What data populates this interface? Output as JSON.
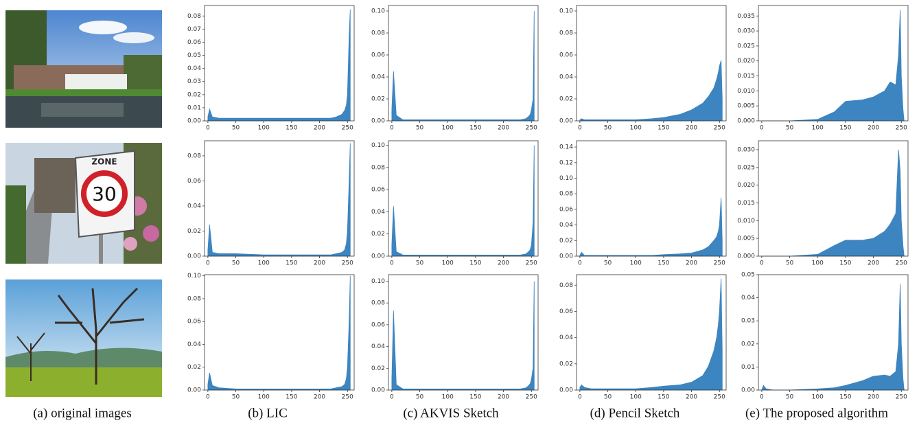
{
  "captions": [
    "(a) original images",
    "(b) LIC",
    "(c) AKVIS Sketch",
    "(d) Pencil Sketch",
    "(e) The proposed algorithm"
  ],
  "photo_text": [
    "ZONE",
    "30"
  ],
  "chart_data": [
    {
      "type": "area",
      "color": "#3d85c0",
      "xlim": [
        -6,
        262
      ],
      "xticks": [
        0,
        50,
        100,
        150,
        200,
        250
      ],
      "ylim": [
        0,
        0.088
      ],
      "yticks": [
        {
          "value": 0,
          "label": "0.00"
        },
        {
          "value": 0.01,
          "label": "0.01"
        },
        {
          "value": 0.02,
          "label": "0.02"
        },
        {
          "value": 0.03,
          "label": "0.03"
        },
        {
          "value": 0.04,
          "label": "0.04"
        },
        {
          "value": 0.05,
          "label": "0.05"
        },
        {
          "value": 0.06,
          "label": "0.06"
        },
        {
          "value": 0.07,
          "label": "0.07"
        },
        {
          "value": 0.08,
          "label": "0.08"
        }
      ],
      "x": [
        0,
        3,
        8,
        20,
        50,
        100,
        130,
        150,
        180,
        200,
        220,
        230,
        240,
        245,
        248,
        250,
        253,
        255
      ],
      "values": [
        0.003,
        0.009,
        0.003,
        0.002,
        0.002,
        0.002,
        0.002,
        0.002,
        0.002,
        0.002,
        0.002,
        0.003,
        0.005,
        0.008,
        0.012,
        0.02,
        0.065,
        0.085
      ]
    },
    {
      "type": "area",
      "color": "#3d85c0",
      "xlim": [
        -6,
        262
      ],
      "xticks": [
        0,
        50,
        100,
        150,
        200,
        250
      ],
      "ylim": [
        0,
        0.105
      ],
      "yticks": [
        {
          "value": 0,
          "label": "0.00"
        },
        {
          "value": 0.02,
          "label": "0.02"
        },
        {
          "value": 0.04,
          "label": "0.04"
        },
        {
          "value": 0.06,
          "label": "0.06"
        },
        {
          "value": 0.08,
          "label": "0.08"
        },
        {
          "value": 0.1,
          "label": "0.10"
        }
      ],
      "x": [
        0,
        3,
        8,
        20,
        50,
        100,
        130,
        150,
        180,
        200,
        220,
        230,
        240,
        245,
        248,
        250,
        253,
        255
      ],
      "values": [
        0.01,
        0.045,
        0.005,
        0.001,
        0.001,
        0.001,
        0.001,
        0.001,
        0.001,
        0.001,
        0.001,
        0.001,
        0.002,
        0.004,
        0.006,
        0.01,
        0.02,
        0.1
      ]
    },
    {
      "type": "area",
      "color": "#3d85c0",
      "xlim": [
        -6,
        262
      ],
      "xticks": [
        0,
        50,
        100,
        150,
        200,
        250
      ],
      "ylim": [
        0,
        0.105
      ],
      "yticks": [
        {
          "value": 0,
          "label": "0.00"
        },
        {
          "value": 0.02,
          "label": "0.02"
        },
        {
          "value": 0.04,
          "label": "0.04"
        },
        {
          "value": 0.06,
          "label": "0.06"
        },
        {
          "value": 0.08,
          "label": "0.08"
        },
        {
          "value": 0.1,
          "label": "0.10"
        }
      ],
      "x": [
        0,
        3,
        8,
        20,
        50,
        100,
        130,
        150,
        180,
        200,
        220,
        230,
        240,
        245,
        248,
        250,
        253,
        255
      ],
      "values": [
        0.001,
        0.002,
        0.001,
        0.001,
        0.001,
        0.001,
        0.002,
        0.003,
        0.006,
        0.01,
        0.016,
        0.022,
        0.03,
        0.038,
        0.044,
        0.05,
        0.055,
        0.02
      ]
    },
    {
      "type": "area",
      "color": "#3d85c0",
      "xlim": [
        -6,
        262
      ],
      "xticks": [
        0,
        50,
        100,
        150,
        200,
        250
      ],
      "ylim": [
        0,
        0.0385
      ],
      "yticks": [
        {
          "value": 0,
          "label": "0.000"
        },
        {
          "value": 0.005,
          "label": "0.005"
        },
        {
          "value": 0.01,
          "label": "0.010"
        },
        {
          "value": 0.015,
          "label": "0.015"
        },
        {
          "value": 0.02,
          "label": "0.020"
        },
        {
          "value": 0.025,
          "label": "0.025"
        },
        {
          "value": 0.03,
          "label": "0.030"
        },
        {
          "value": 0.035,
          "label": "0.035"
        }
      ],
      "x": [
        0,
        3,
        8,
        20,
        50,
        100,
        130,
        150,
        180,
        200,
        220,
        230,
        240,
        245,
        248,
        250,
        253,
        255
      ],
      "values": [
        0,
        0,
        0,
        0,
        0,
        0.0005,
        0.003,
        0.0065,
        0.007,
        0.008,
        0.01,
        0.013,
        0.012,
        0.022,
        0.037,
        0.015,
        0.004,
        0
      ]
    },
    {
      "type": "area",
      "color": "#3d85c0",
      "xlim": [
        -6,
        262
      ],
      "xticks": [
        0,
        50,
        100,
        150,
        200,
        250
      ],
      "ylim": [
        0,
        0.092
      ],
      "yticks": [
        {
          "value": 0,
          "label": "0.00"
        },
        {
          "value": 0.02,
          "label": "0.02"
        },
        {
          "value": 0.04,
          "label": "0.04"
        },
        {
          "value": 0.06,
          "label": "0.06"
        },
        {
          "value": 0.08,
          "label": "0.08"
        }
      ],
      "x": [
        0,
        3,
        8,
        20,
        50,
        100,
        130,
        150,
        180,
        200,
        220,
        230,
        240,
        245,
        248,
        250,
        253,
        255
      ],
      "values": [
        0.005,
        0.025,
        0.003,
        0.002,
        0.002,
        0.001,
        0.001,
        0.001,
        0.001,
        0.001,
        0.001,
        0.002,
        0.003,
        0.005,
        0.01,
        0.02,
        0.06,
        0.09
      ]
    },
    {
      "type": "area",
      "color": "#3d85c0",
      "xlim": [
        -6,
        262
      ],
      "xticks": [
        0,
        50,
        100,
        150,
        200,
        250
      ],
      "ylim": [
        0,
        0.104
      ],
      "yticks": [
        {
          "value": 0,
          "label": "0.00"
        },
        {
          "value": 0.02,
          "label": "0.02"
        },
        {
          "value": 0.04,
          "label": "0.04"
        },
        {
          "value": 0.06,
          "label": "0.06"
        },
        {
          "value": 0.08,
          "label": "0.08"
        },
        {
          "value": 0.1,
          "label": "0.10"
        }
      ],
      "x": [
        0,
        3,
        8,
        20,
        50,
        100,
        130,
        150,
        180,
        200,
        220,
        230,
        240,
        245,
        248,
        250,
        253,
        255
      ],
      "values": [
        0.01,
        0.045,
        0.004,
        0.001,
        0.001,
        0.001,
        0.001,
        0.001,
        0.001,
        0.001,
        0.001,
        0.001,
        0.002,
        0.004,
        0.006,
        0.01,
        0.03,
        0.1
      ]
    },
    {
      "type": "area",
      "color": "#3d85c0",
      "xlim": [
        -6,
        262
      ],
      "xticks": [
        0,
        50,
        100,
        150,
        200,
        250
      ],
      "ylim": [
        0,
        0.148
      ],
      "yticks": [
        {
          "value": 0,
          "label": "0.00"
        },
        {
          "value": 0.02,
          "label": "0.02"
        },
        {
          "value": 0.04,
          "label": "0.04"
        },
        {
          "value": 0.06,
          "label": "0.06"
        },
        {
          "value": 0.08,
          "label": "0.08"
        },
        {
          "value": 0.1,
          "label": "0.10"
        },
        {
          "value": 0.12,
          "label": "0.12"
        },
        {
          "value": 0.14,
          "label": "0.14"
        }
      ],
      "x": [
        0,
        3,
        8,
        20,
        50,
        100,
        130,
        150,
        180,
        200,
        220,
        230,
        240,
        245,
        248,
        250,
        253,
        255
      ],
      "values": [
        0.001,
        0.005,
        0.001,
        0.001,
        0.001,
        0.001,
        0.001,
        0.002,
        0.003,
        0.004,
        0.008,
        0.012,
        0.02,
        0.025,
        0.032,
        0.04,
        0.075,
        0.02
      ]
    },
    {
      "type": "area",
      "color": "#3d85c0",
      "xlim": [
        -6,
        262
      ],
      "xticks": [
        0,
        50,
        100,
        150,
        200,
        250
      ],
      "ylim": [
        0,
        0.0325
      ],
      "yticks": [
        {
          "value": 0,
          "label": "0.000"
        },
        {
          "value": 0.005,
          "label": "0.005"
        },
        {
          "value": 0.01,
          "label": "0.010"
        },
        {
          "value": 0.015,
          "label": "0.015"
        },
        {
          "value": 0.02,
          "label": "0.020"
        },
        {
          "value": 0.025,
          "label": "0.025"
        },
        {
          "value": 0.03,
          "label": "0.030"
        }
      ],
      "x": [
        0,
        3,
        8,
        20,
        50,
        100,
        130,
        150,
        180,
        200,
        220,
        230,
        240,
        245,
        248,
        250,
        253,
        255
      ],
      "values": [
        0,
        0,
        0,
        0,
        0,
        0.0005,
        0.003,
        0.0045,
        0.0045,
        0.005,
        0.007,
        0.009,
        0.012,
        0.03,
        0.024,
        0.01,
        0.003,
        0
      ]
    },
    {
      "type": "area",
      "color": "#3d85c0",
      "xlim": [
        -6,
        262
      ],
      "xticks": [
        0,
        50,
        100,
        150,
        200,
        250
      ],
      "ylim": [
        0,
        0.101
      ],
      "yticks": [
        {
          "value": 0,
          "label": "0.00"
        },
        {
          "value": 0.02,
          "label": "0.02"
        },
        {
          "value": 0.04,
          "label": "0.04"
        },
        {
          "value": 0.06,
          "label": "0.06"
        },
        {
          "value": 0.08,
          "label": "0.08"
        },
        {
          "value": 0.1,
          "label": "0.10"
        }
      ],
      "x": [
        0,
        3,
        8,
        20,
        50,
        100,
        130,
        150,
        180,
        200,
        220,
        230,
        240,
        245,
        248,
        250,
        253,
        255
      ],
      "values": [
        0.005,
        0.015,
        0.004,
        0.002,
        0.001,
        0.001,
        0.001,
        0.001,
        0.001,
        0.001,
        0.001,
        0.002,
        0.003,
        0.005,
        0.01,
        0.02,
        0.06,
        0.1
      ]
    },
    {
      "type": "area",
      "color": "#3d85c0",
      "xlim": [
        -6,
        262
      ],
      "xticks": [
        0,
        50,
        100,
        150,
        200,
        250
      ],
      "ylim": [
        0,
        0.106
      ],
      "yticks": [
        {
          "value": 0,
          "label": "0.00"
        },
        {
          "value": 0.02,
          "label": "0.02"
        },
        {
          "value": 0.04,
          "label": "0.04"
        },
        {
          "value": 0.06,
          "label": "0.06"
        },
        {
          "value": 0.08,
          "label": "0.08"
        },
        {
          "value": 0.1,
          "label": "0.10"
        }
      ],
      "x": [
        0,
        3,
        8,
        20,
        50,
        100,
        130,
        150,
        180,
        200,
        220,
        230,
        240,
        245,
        248,
        250,
        253,
        255
      ],
      "values": [
        0.01,
        0.073,
        0.005,
        0.001,
        0.001,
        0.001,
        0.001,
        0.001,
        0.001,
        0.001,
        0.001,
        0.001,
        0.002,
        0.004,
        0.006,
        0.01,
        0.02,
        0.1
      ]
    },
    {
      "type": "area",
      "color": "#3d85c0",
      "xlim": [
        -6,
        262
      ],
      "xticks": [
        0,
        50,
        100,
        150,
        200,
        250
      ],
      "ylim": [
        0,
        0.088
      ],
      "yticks": [
        {
          "value": 0,
          "label": "0.00"
        },
        {
          "value": 0.02,
          "label": "0.02"
        },
        {
          "value": 0.04,
          "label": "0.04"
        },
        {
          "value": 0.06,
          "label": "0.06"
        },
        {
          "value": 0.08,
          "label": "0.08"
        }
      ],
      "x": [
        0,
        3,
        8,
        20,
        50,
        100,
        130,
        150,
        180,
        200,
        220,
        230,
        240,
        245,
        248,
        250,
        253,
        255
      ],
      "values": [
        0.002,
        0.004,
        0.002,
        0.001,
        0.001,
        0.001,
        0.002,
        0.003,
        0.004,
        0.006,
        0.011,
        0.018,
        0.03,
        0.04,
        0.05,
        0.06,
        0.085,
        0.03
      ]
    },
    {
      "type": "area",
      "color": "#3d85c0",
      "xlim": [
        -6,
        262
      ],
      "xticks": [
        0,
        50,
        100,
        150,
        200,
        250
      ],
      "ylim": [
        0,
        0.05
      ],
      "yticks": [
        {
          "value": 0,
          "label": "0.00"
        },
        {
          "value": 0.01,
          "label": "0.01"
        },
        {
          "value": 0.02,
          "label": "0.02"
        },
        {
          "value": 0.03,
          "label": "0.03"
        },
        {
          "value": 0.04,
          "label": "0.04"
        },
        {
          "value": 0.05,
          "label": "0.05"
        }
      ],
      "x": [
        0,
        3,
        8,
        20,
        50,
        100,
        130,
        150,
        180,
        200,
        220,
        230,
        240,
        245,
        248,
        250,
        253,
        255
      ],
      "values": [
        0,
        0.002,
        0.0005,
        0,
        0,
        0.0005,
        0.001,
        0.002,
        0.004,
        0.006,
        0.0065,
        0.006,
        0.008,
        0.02,
        0.046,
        0.02,
        0.005,
        0
      ]
    }
  ]
}
